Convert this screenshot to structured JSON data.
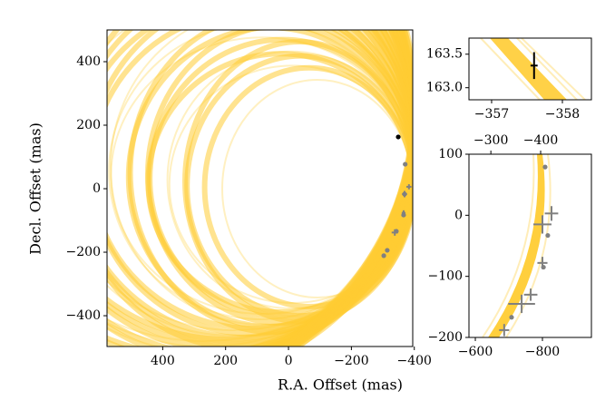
{
  "chart_data": [
    {
      "type": "scatter",
      "xlabel": "R.A. Offset (mas)",
      "ylabel": "Decl. Offset (mas)",
      "xlim": [
        577,
        -395
      ],
      "ylim": [
        -497,
        500
      ],
      "xticks": [
        400,
        200,
        0,
        {
          "value": -200,
          "label": "−200"
        },
        {
          "value": -400,
          "label": "−400"
        }
      ],
      "yticks": [
        {
          "value": -400,
          "label": "−400"
        },
        {
          "value": -200,
          "label": "−200"
        },
        0,
        200,
        400
      ],
      "series": [
        {
          "marker": "dot",
          "color": "#808080",
          "x": [
            -371,
            -369,
            -366,
            -343,
            -314,
            -303
          ],
          "y": [
            77,
            -17,
            -83,
            -134,
            -194,
            -211
          ]
        },
        {
          "marker": "cross",
          "color": "#808080",
          "x": [
            -383,
            -369,
            -366,
            -338
          ],
          "y": [
            6,
            -17,
            -76,
            -138
          ],
          "xerr": [
            8,
            8,
            6,
            10
          ],
          "yerr": [
            8,
            10,
            8,
            10
          ]
        },
        {
          "marker": "dot",
          "color": "#000000",
          "x": [
            -349
          ],
          "y": [
            163
          ]
        }
      ]
    },
    {
      "type": "scatter",
      "xlim": [
        -356.68,
        -358.41
      ],
      "ylim": [
        162.82,
        163.74
      ],
      "xticks": [
        {
          "value": -357,
          "label": "−357"
        },
        {
          "value": -358,
          "label": "−358"
        }
      ],
      "yticks": [
        {
          "value": 163.0,
          "label": "163.0"
        },
        163.5
      ],
      "series": [
        {
          "marker": "cross",
          "color": "#000000",
          "x": [
            -357.6
          ],
          "y": [
            163.33
          ],
          "xerr": [
            0.05
          ],
          "yerr": [
            0.2
          ]
        }
      ]
    },
    {
      "type": "scatter",
      "xlim": [
        -581,
        -946
      ],
      "ylim": [
        -200,
        100
      ],
      "x2lim": [
        -256,
        -502
      ],
      "xticks": [
        {
          "value": -600,
          "label": "−600"
        },
        {
          "value": -800,
          "label": "−800"
        }
      ],
      "x2ticks": [
        {
          "value": -300,
          "label": "−300"
        },
        {
          "value": -400,
          "label": "−400"
        }
      ],
      "yticks": [
        {
          "value": -200,
          "label": "−200"
        },
        {
          "value": -100,
          "label": "−100"
        },
        0,
        100
      ],
      "series": [
        {
          "marker": "dot",
          "color": "#808080",
          "x": [
            -808,
            -816,
            -803,
            -708
          ],
          "y": [
            79,
            -33,
            -85,
            -167
          ]
        },
        {
          "marker": "cross",
          "color": "#808080",
          "x": [
            -800,
            -827,
            -800,
            -765,
            -738,
            -686
          ],
          "y": [
            -15,
            3,
            -78,
            -130,
            -145,
            -188
          ],
          "xerr": [
            27,
            20,
            15,
            20,
            40,
            15
          ],
          "yerr": [
            15,
            12,
            10,
            10,
            15,
            10
          ]
        }
      ]
    }
  ]
}
